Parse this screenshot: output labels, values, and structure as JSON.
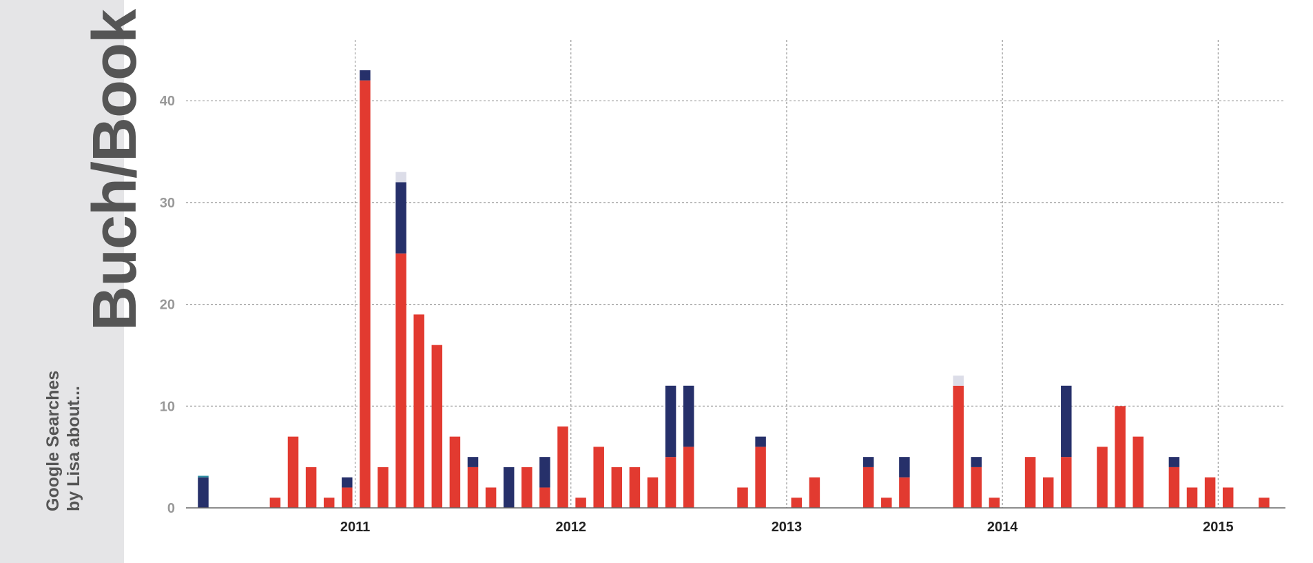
{
  "sidebar": {
    "title": "Buch/Book",
    "subtitle_line1": "Google Searches",
    "subtitle_line2": "by Lisa about..."
  },
  "colors": {
    "red": "#e23a30",
    "navy": "#26306a",
    "light": "#dcdde8",
    "teal": "#2a8ca0"
  },
  "chart_data": {
    "type": "bar",
    "stacked": true,
    "ylim": [
      0,
      46
    ],
    "yticks": [
      0,
      10,
      20,
      30,
      40
    ],
    "xticks": [
      "2011",
      "2012",
      "2013",
      "2014",
      "2015"
    ],
    "grid": true,
    "x": [
      "2010-04",
      "2010-05",
      "2010-06",
      "2010-07",
      "2010-08",
      "2010-09",
      "2010-10",
      "2010-11",
      "2010-12",
      "2011-01",
      "2011-02",
      "2011-03",
      "2011-04",
      "2011-05",
      "2011-06",
      "2011-07",
      "2011-08",
      "2011-09",
      "2011-10",
      "2011-11",
      "2011-12",
      "2012-01",
      "2012-02",
      "2012-03",
      "2012-04",
      "2012-05",
      "2012-06",
      "2012-07",
      "2012-08",
      "2012-09",
      "2012-10",
      "2012-11",
      "2012-12",
      "2013-01",
      "2013-02",
      "2013-03",
      "2013-04",
      "2013-05",
      "2013-06",
      "2013-07",
      "2013-08",
      "2013-09",
      "2013-10",
      "2013-11",
      "2013-12",
      "2014-01",
      "2014-02",
      "2014-03",
      "2014-04",
      "2014-05",
      "2014-06",
      "2014-07",
      "2014-08",
      "2014-09",
      "2014-10",
      "2014-11",
      "2014-12",
      "2015-01",
      "2015-02",
      "2015-03",
      "2015-04"
    ],
    "series": [
      {
        "color": "red",
        "values": [
          0,
          0,
          0,
          0,
          1,
          7,
          4,
          1,
          2,
          42,
          4,
          25,
          19,
          16,
          7,
          4,
          2,
          0,
          4,
          2,
          8,
          1,
          6,
          4,
          4,
          3,
          5,
          6,
          0,
          0,
          2,
          6,
          0,
          1,
          3,
          0,
          0,
          4,
          1,
          3,
          0,
          0,
          12,
          4,
          1,
          0,
          5,
          3,
          5,
          0,
          6,
          10,
          7,
          0,
          4,
          2,
          3,
          2,
          0,
          1,
          0
        ]
      },
      {
        "color": "navy",
        "values": [
          3,
          0,
          0,
          0,
          0,
          0,
          0,
          0,
          1,
          1,
          0,
          7,
          0,
          0,
          0,
          1,
          0,
          4,
          0,
          3,
          0,
          0,
          0,
          0,
          0,
          0,
          7,
          6,
          0,
          0,
          0,
          1,
          0,
          0,
          0,
          0,
          0,
          1,
          0,
          2,
          0,
          0,
          0,
          1,
          0,
          0,
          0,
          0,
          7,
          0,
          0,
          0,
          0,
          0,
          1,
          0,
          0,
          0,
          0,
          0,
          0
        ]
      },
      {
        "color": "light",
        "values": [
          0,
          0,
          0,
          0,
          0,
          0,
          0,
          0,
          0,
          0,
          0,
          1,
          0,
          0,
          0,
          0,
          0,
          0,
          0,
          0,
          0,
          0,
          0,
          0,
          0,
          0,
          0,
          0,
          0,
          0,
          0,
          0,
          0,
          0,
          0,
          0,
          0,
          0,
          0,
          0,
          0,
          0,
          1,
          0,
          0,
          0,
          0,
          0,
          0,
          0,
          0,
          0,
          0,
          0,
          0,
          0,
          0,
          0,
          0,
          0,
          0
        ]
      },
      {
        "color": "teal",
        "values": [
          0.15,
          0,
          0,
          0,
          0,
          0,
          0,
          0,
          0,
          0,
          0,
          0,
          0,
          0,
          0,
          0,
          0,
          0,
          0,
          0,
          0,
          0,
          0,
          0,
          0,
          0,
          0,
          0,
          0,
          0,
          0,
          0,
          0,
          0,
          0,
          0,
          0,
          0,
          0,
          0,
          0,
          0,
          0,
          0,
          0,
          0,
          0,
          0,
          0,
          0,
          0,
          0,
          0,
          0,
          0,
          0,
          0,
          0,
          0,
          0,
          0
        ]
      }
    ]
  }
}
